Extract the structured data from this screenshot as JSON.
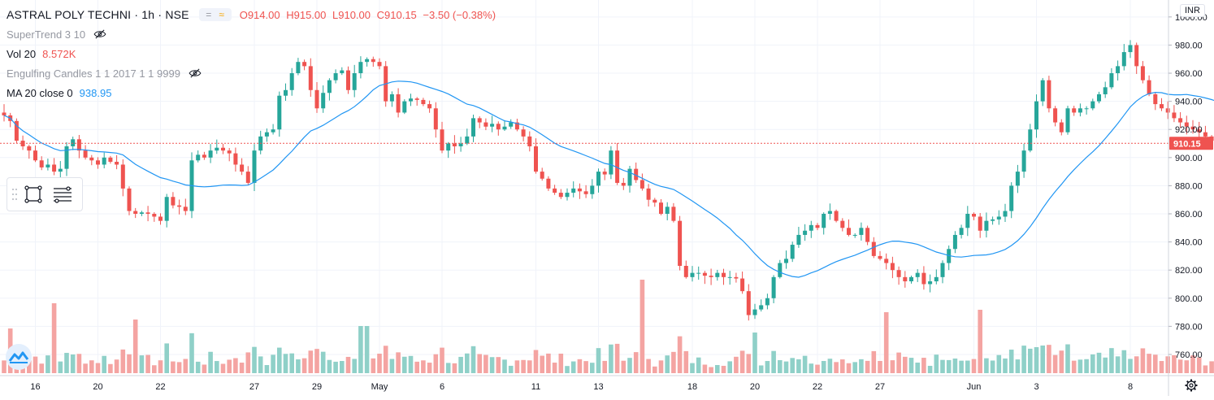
{
  "header": {
    "symbol": "ASTRAL POLY TECHNI",
    "interval": "1h",
    "exchange": "NSE",
    "ohlc": {
      "open": "O914.00",
      "high": "H915.00",
      "low": "L910.00",
      "close": "C910.15",
      "change": "−3.50 (−0.38%)"
    }
  },
  "indicators": [
    {
      "name": "SuperTrend 3 10",
      "value": "",
      "hidden": true
    },
    {
      "name": "Vol 20",
      "value": "8.572K",
      "value_color": "#ef5350"
    },
    {
      "name": "Engulfing Candles 1 1 2017 1 1 9999",
      "value": "",
      "hidden": true
    },
    {
      "name": "MA 20 close 0",
      "value": "938.95",
      "value_color": "#2196f3"
    }
  ],
  "currency": "INR",
  "last_price_label": "910.15",
  "colors": {
    "up": "#26a69a",
    "down": "#ef5350",
    "up_vol": "#8fd0c8",
    "down_vol": "#f4a4a2",
    "ma": "#2196f3",
    "grid": "#f0f3fa",
    "price_line": "#ef5350"
  },
  "icons": {
    "toolbox": [
      "drag-handle-icon",
      "rectangle-tool-icon",
      "lines-tool-icon"
    ],
    "logo": "tradingview-logo-icon",
    "settings": "gear-icon",
    "hidden": "eye-crossed-icon"
  },
  "chart_data": {
    "type": "candlestick",
    "y_axis": {
      "ticks": [
        760,
        780,
        800,
        820,
        840,
        860,
        880,
        900,
        920,
        940,
        960,
        980,
        1000
      ],
      "labels": [
        "760.00",
        "780.00",
        "800.00",
        "820.00",
        "840.00",
        "860.00",
        "880.00",
        "900.00",
        "920.00",
        "940.00",
        "960.00",
        "980.00",
        "1000.00"
      ],
      "range": [
        749,
        1008
      ]
    },
    "x_axis": {
      "labels": [
        "16",
        "20",
        "22",
        "27",
        "29",
        "May",
        "6",
        "11",
        "13",
        "18",
        "20",
        "22",
        "27",
        "Jun",
        "3",
        "8"
      ],
      "label_bars": [
        5,
        15,
        25,
        40,
        50,
        60,
        70,
        85,
        95,
        110,
        120,
        130,
        140,
        155,
        165,
        180
      ]
    },
    "ma_period": 20,
    "last_price": 910.15,
    "volume_unit": "K",
    "closes": [
      930,
      926,
      912,
      908,
      905,
      898,
      893,
      895,
      890,
      892,
      908,
      913,
      905,
      900,
      898,
      895,
      900,
      897,
      895,
      878,
      862,
      860,
      861,
      860,
      858,
      855,
      872,
      866,
      865,
      862,
      898,
      902,
      900,
      905,
      907,
      905,
      903,
      895,
      890,
      882,
      905,
      915,
      918,
      920,
      944,
      948,
      960,
      968,
      965,
      948,
      935,
      946,
      955,
      960,
      962,
      948,
      960,
      968,
      970,
      968,
      965,
      940,
      945,
      932,
      940,
      942,
      941,
      938,
      935,
      920,
      905,
      910,
      908,
      910,
      915,
      928,
      925,
      922,
      924,
      920,
      922,
      925,
      920,
      915,
      908,
      890,
      885,
      878,
      875,
      872,
      875,
      878,
      876,
      874,
      880,
      890,
      888,
      905,
      882,
      880,
      892,
      884,
      878,
      870,
      868,
      860,
      865,
      855,
      823,
      815,
      818,
      818,
      816,
      815,
      818,
      815,
      815,
      814,
      805,
      788,
      792,
      795,
      800,
      815,
      825,
      828,
      838,
      845,
      848,
      852,
      850,
      860,
      862,
      855,
      850,
      845,
      845,
      850,
      840,
      830,
      828,
      825,
      820,
      815,
      812,
      815,
      818,
      810,
      812,
      815,
      825,
      835,
      845,
      850,
      860,
      858,
      848,
      855,
      856,
      858,
      862,
      880,
      890,
      905,
      920,
      940,
      955,
      935,
      925,
      918,
      935,
      932,
      935,
      935,
      940,
      945,
      950,
      960,
      965,
      975,
      980,
      965,
      955,
      945,
      938,
      935,
      932,
      928,
      925,
      922,
      920,
      918,
      915,
      912,
      910
    ]
  }
}
